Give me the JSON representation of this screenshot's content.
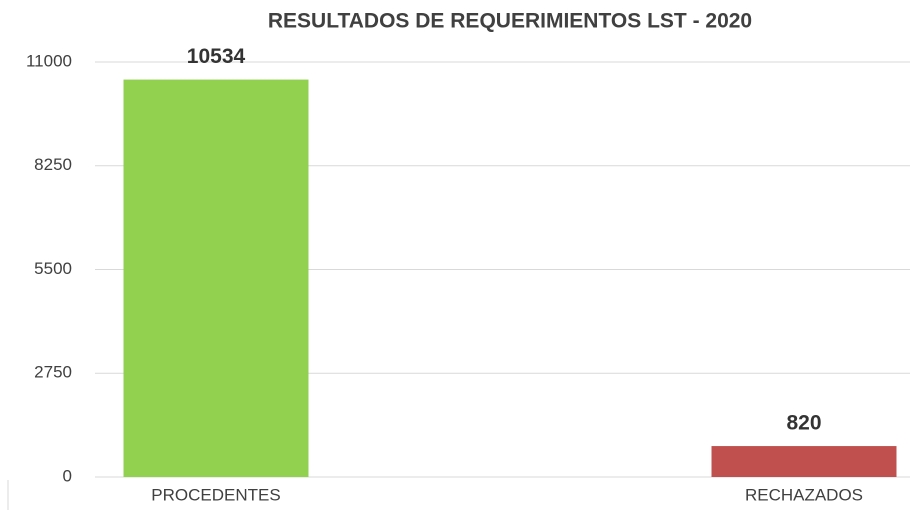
{
  "chart_data": {
    "type": "bar",
    "title": "RESULTADOS DE REQUERIMIENTOS LST - 2020",
    "categories": [
      "PROCEDENTES",
      "RECHAZADOS"
    ],
    "values": [
      10534,
      820
    ],
    "colors": [
      "#92d050",
      "#c0504d"
    ],
    "ylim": [
      0,
      11000
    ],
    "yticks": [
      0,
      2750,
      5500,
      8250,
      11000
    ],
    "grid": true
  }
}
